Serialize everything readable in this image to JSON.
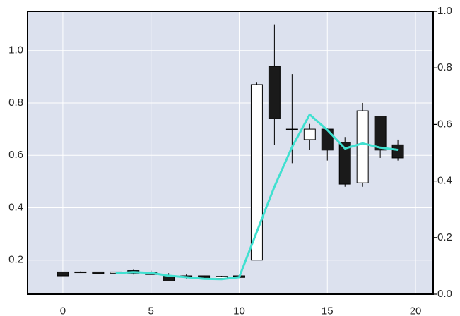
{
  "chart_data": {
    "type": "candlestick",
    "title": "",
    "xlabel": "",
    "ylabel": "",
    "xlim": [
      -2,
      21
    ],
    "ylim": [
      0.07,
      1.15
    ],
    "y2lim": [
      0.0,
      1.0
    ],
    "grid": true,
    "background": "#dce1ee",
    "colors": {
      "up_fill": "#ffffff",
      "down_fill": "#1a1a1a",
      "edge": "#000000",
      "line": "#40e0d0"
    },
    "x_ticks": [
      0,
      5,
      10,
      15,
      20
    ],
    "y_ticks": [
      0.2,
      0.4,
      0.6,
      0.8,
      1.0
    ],
    "y2_ticks": [
      0.0,
      0.2,
      0.4,
      0.6,
      0.8,
      1.0
    ],
    "x_tick_labels": [
      "0",
      "5",
      "10",
      "15",
      "20"
    ],
    "y_tick_labels": [
      "0.2",
      "0.4",
      "0.6",
      "0.8",
      "1.0"
    ],
    "y2_tick_labels": [
      "0.0",
      "0.2",
      "0.4",
      "0.6",
      "0.8",
      "1.0"
    ],
    "candles": [
      {
        "x": 0,
        "open": 0.155,
        "high": 0.155,
        "low": 0.14,
        "close": 0.14
      },
      {
        "x": 1,
        "open": 0.152,
        "high": 0.157,
        "low": 0.152,
        "close": 0.155
      },
      {
        "x": 2,
        "open": 0.155,
        "high": 0.155,
        "low": 0.148,
        "close": 0.148
      },
      {
        "x": 3,
        "open": 0.15,
        "high": 0.155,
        "low": 0.15,
        "close": 0.155
      },
      {
        "x": 4,
        "open": 0.16,
        "high": 0.163,
        "low": 0.145,
        "close": 0.15
      },
      {
        "x": 5,
        "open": 0.153,
        "high": 0.16,
        "low": 0.145,
        "close": 0.145
      },
      {
        "x": 6,
        "open": 0.14,
        "high": 0.15,
        "low": 0.12,
        "close": 0.12
      },
      {
        "x": 7,
        "open": 0.14,
        "high": 0.145,
        "low": 0.13,
        "close": 0.135
      },
      {
        "x": 8,
        "open": 0.14,
        "high": 0.142,
        "low": 0.13,
        "close": 0.13
      },
      {
        "x": 9,
        "open": 0.13,
        "high": 0.14,
        "low": 0.125,
        "close": 0.138
      },
      {
        "x": 10,
        "open": 0.14,
        "high": 0.14,
        "low": 0.134,
        "close": 0.134
      },
      {
        "x": 11,
        "open": 0.2,
        "high": 0.88,
        "low": 0.2,
        "close": 0.87
      },
      {
        "x": 12,
        "open": 0.94,
        "high": 1.1,
        "low": 0.64,
        "close": 0.74
      },
      {
        "x": 13,
        "open": 0.7,
        "high": 0.91,
        "low": 0.57,
        "close": 0.7
      },
      {
        "x": 14,
        "open": 0.66,
        "high": 0.72,
        "low": 0.62,
        "close": 0.7
      },
      {
        "x": 15,
        "open": 0.7,
        "high": 0.705,
        "low": 0.58,
        "close": 0.62
      },
      {
        "x": 16,
        "open": 0.65,
        "high": 0.67,
        "low": 0.48,
        "close": 0.49
      },
      {
        "x": 17,
        "open": 0.495,
        "high": 0.8,
        "low": 0.48,
        "close": 0.77
      },
      {
        "x": 18,
        "open": 0.75,
        "high": 0.75,
        "low": 0.59,
        "close": 0.62
      },
      {
        "x": 19,
        "open": 0.64,
        "high": 0.66,
        "low": 0.58,
        "close": 0.59
      }
    ],
    "line_series": {
      "axis": "right",
      "x": [
        3,
        4,
        5,
        6,
        7,
        8,
        9,
        10,
        11,
        12,
        13,
        14,
        15,
        16,
        17,
        18,
        19
      ],
      "y": [
        0.074,
        0.078,
        0.075,
        0.065,
        0.06,
        0.054,
        0.053,
        0.06,
        0.22,
        0.38,
        0.52,
        0.635,
        0.58,
        0.515,
        0.533,
        0.518,
        0.51
      ]
    }
  }
}
